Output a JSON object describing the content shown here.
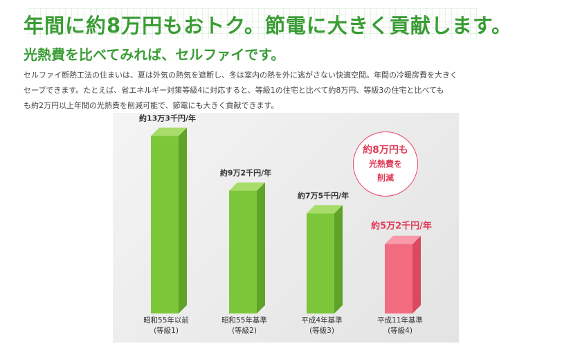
{
  "headline": "年間に約8万円もおトク。節電に大きく貢献します。",
  "subheadline": "光熱費を比べてみれば、セルファイです。",
  "body_lines": [
    "セルファイ断熱工法の住まいは、夏は外気の熱気を遮断し、冬は室内の熱を外に逃がさない快適空間。年間の冷暖房費を大きく",
    "セーブできます。たとえば、省エネルギー対策等級4に対応すると、等級1の住宅と比べて約8万円、等級3の住宅と比べても",
    "も約2万円以上年間の光熱費を削減可能で、節電にも大きく貢献できます。"
  ],
  "badge": {
    "line1": "約8万円も",
    "line2": "光熱費を",
    "line3": "削減"
  },
  "colors": {
    "headline_green": "#3a9c35",
    "bar_green_front": "#7cc63a",
    "bar_green_side": "#5fa329",
    "bar_green_top": "#a8dc6a",
    "bar_red_front": "#f26b7f",
    "bar_red_side": "#d94a60",
    "bar_red_top": "#f89aa8",
    "highlight_red": "#e03c58"
  },
  "chart_data": {
    "type": "bar",
    "title": "",
    "xlabel": "",
    "ylabel": "",
    "ylim": [
      0,
      140000
    ],
    "categories": [
      [
        "昭和55年以前",
        "(等級1)"
      ],
      [
        "昭和55年基準",
        "(等級2)"
      ],
      [
        "平成4年基準",
        "(等級3)"
      ],
      [
        "平成11年基準",
        "(等級4)"
      ]
    ],
    "values": [
      133000,
      92000,
      75000,
      52000
    ],
    "value_labels": [
      "約13万3千円/年",
      "約9万2千円/年",
      "約7万5千円/年",
      "約5万2千円/年"
    ],
    "highlight_index": 3
  }
}
